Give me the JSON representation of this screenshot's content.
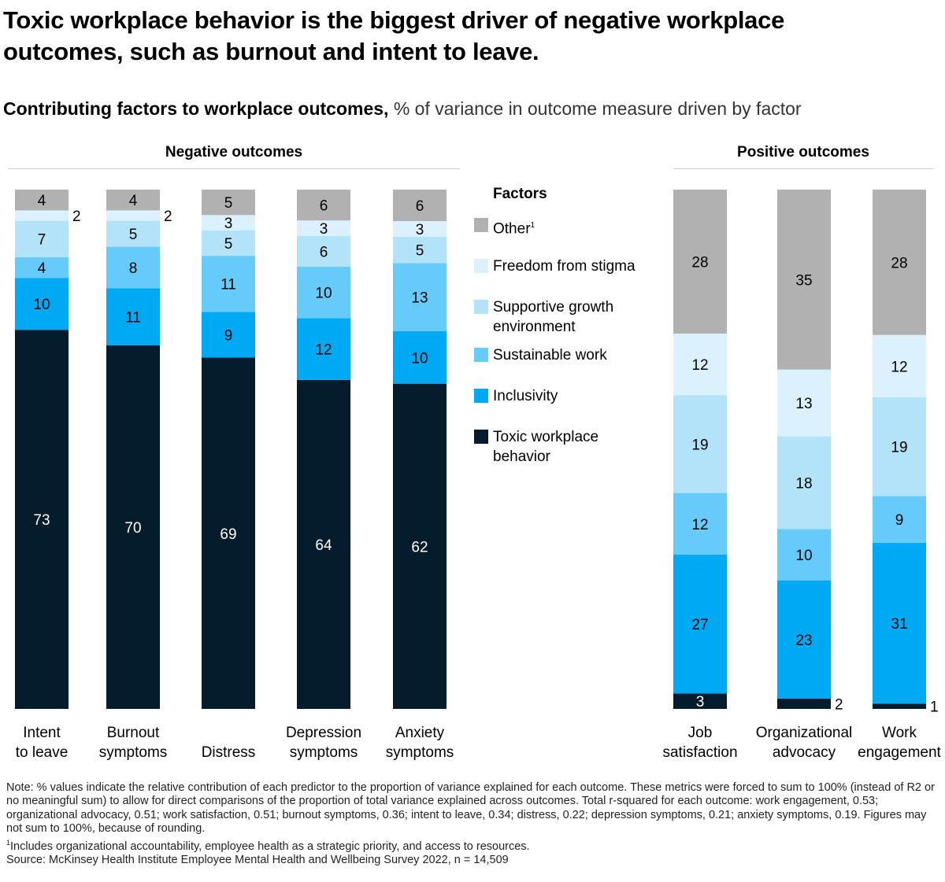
{
  "title": "Toxic workplace behavior is the biggest driver of negative workplace outcomes, such as burnout and intent to leave.",
  "subtitle_bold": "Contributing factors to workplace outcomes,",
  "subtitle_light": " % of variance in outcome measure driven by factor",
  "groups": {
    "negative": "Negative outcomes",
    "positive": "Positive outcomes"
  },
  "legend": {
    "title": "Factors",
    "items": [
      {
        "label": "Other",
        "sup": "1",
        "color": "#b1b1b1"
      },
      {
        "label": "Freedom from stigma",
        "sup": "",
        "color": "#dbf1fd"
      },
      {
        "label": "Supportive growth environment",
        "sup": "",
        "color": "#b3e3f9"
      },
      {
        "label": "Sustainable work",
        "sup": "",
        "color": "#67cbf9"
      },
      {
        "label": "Inclusivity",
        "sup": "",
        "color": "#00a9f4"
      },
      {
        "label": "Toxic workplace behavior",
        "sup": "",
        "color": "#051c2c"
      }
    ]
  },
  "chart_data": {
    "type": "bar",
    "stacked": true,
    "orientation": "vertical",
    "title": "Contributing factors to workplace outcomes",
    "ylabel": "% of variance in outcome measure driven by factor",
    "ylim": [
      0,
      100
    ],
    "grid": false,
    "legend_position": "center-right",
    "categories": [
      "Intent to leave",
      "Burnout symptoms",
      "Distress",
      "Depression symptoms",
      "Anxiety symptoms",
      "Job satisfaction",
      "Organizational advocacy",
      "Work engagement"
    ],
    "category_groups": [
      "Negative outcomes",
      "Negative outcomes",
      "Negative outcomes",
      "Negative outcomes",
      "Negative outcomes",
      "Positive outcomes",
      "Positive outcomes",
      "Positive outcomes"
    ],
    "series": [
      {
        "name": "Toxic workplace behavior",
        "color": "#051c2c",
        "values": [
          73,
          70,
          69,
          64,
          62,
          3,
          2,
          1
        ]
      },
      {
        "name": "Inclusivity",
        "color": "#00a9f4",
        "values": [
          10,
          11,
          9,
          12,
          10,
          27,
          23,
          31
        ]
      },
      {
        "name": "Sustainable work",
        "color": "#67cbf9",
        "values": [
          4,
          8,
          11,
          10,
          13,
          12,
          10,
          9
        ]
      },
      {
        "name": "Supportive growth environment",
        "color": "#b3e3f9",
        "values": [
          7,
          5,
          5,
          6,
          5,
          19,
          18,
          19
        ]
      },
      {
        "name": "Freedom from stigma",
        "color": "#dbf1fd",
        "values": [
          2,
          2,
          3,
          3,
          3,
          12,
          13,
          12
        ]
      },
      {
        "name": "Other",
        "color": "#b1b1b1",
        "values": [
          4,
          4,
          5,
          6,
          6,
          28,
          35,
          28
        ]
      }
    ]
  },
  "notes": {
    "note": "Note: % values indicate the relative contribution of each predictor to the proportion of variance explained for each outcome. These metrics were forced to sum to 100% (instead of R2 or no meaningful sum) to allow for direct comparisons of the proportion of total variance explained across outcomes. Total r-squared for each outcome: work engagement, 0.53; organizational advocacy, 0.51; work satisfaction, 0.51; burnout symptoms, 0.36; intent to leave, 0.34; distress, 0.22; depression symptoms, 0.21; anxiety symptoms, 0.19. Figures may not sum to 100%, because of rounding.",
    "footnote_mark": "1",
    "footnote": "Includes organizational accountability, employee health as a strategic priority, and access to resources.",
    "source": "Source: McKinsey Health Institute Employee Mental Health and Wellbeing Survey 2022, n = 14,509"
  }
}
